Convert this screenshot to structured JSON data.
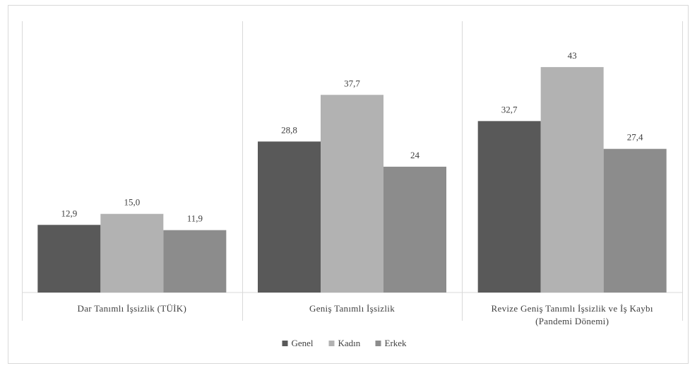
{
  "chart_data": {
    "type": "bar",
    "categories": [
      [
        "Dar Tanımlı İşsizlik (TÜİK)"
      ],
      [
        "Geniş Tanımlı İşsizlik"
      ],
      [
        "Revize Geniş Tanımlı İşsizlik ve İş Kaybı",
        "(Pandemi Dönemi)"
      ]
    ],
    "series": [
      {
        "name": "Genel",
        "color": "#595959",
        "values": [
          12.9,
          28.8,
          32.7
        ],
        "labels": [
          "12,9",
          "28,8",
          "32,7"
        ]
      },
      {
        "name": "Kadın",
        "color": "#b2b2b2",
        "values": [
          15.0,
          37.7,
          43
        ],
        "labels": [
          "15,0",
          "37,7",
          "43"
        ]
      },
      {
        "name": "Erkek",
        "color": "#8c8c8c",
        "values": [
          11.9,
          24,
          27.4
        ],
        "labels": [
          "11,9",
          "24",
          "27,4"
        ]
      }
    ],
    "ylim": [
      0,
      46
    ],
    "grid": false,
    "category_dividers": true,
    "legend_position": "bottom"
  }
}
